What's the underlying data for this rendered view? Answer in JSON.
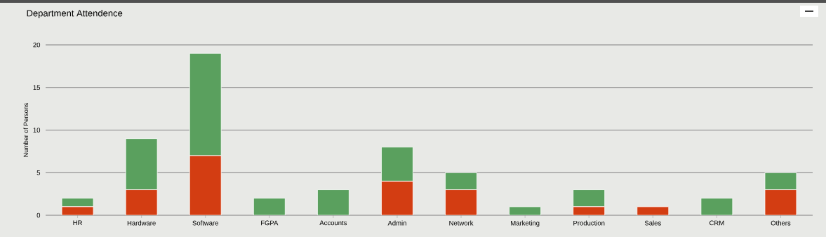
{
  "chart_data": {
    "type": "bar",
    "title": "Department Attendence",
    "ylabel": "Number of Persons",
    "categories": [
      "HR",
      "Hardware",
      "Software",
      "FGPA",
      "Accounts",
      "Admin",
      "Network",
      "Marketing",
      "Production",
      "Sales",
      "CRM",
      "Others"
    ],
    "stacked": true,
    "series": [
      {
        "color": "#d33d12",
        "values": [
          1,
          3,
          7,
          0,
          0,
          4,
          3,
          0,
          1,
          1,
          0,
          3
        ]
      },
      {
        "color": "#5aa05e",
        "values": [
          1,
          6,
          12,
          2,
          3,
          4,
          2,
          1,
          2,
          0,
          2,
          2
        ]
      }
    ],
    "ylim": [
      0,
      20
    ],
    "yticks": [
      0,
      5,
      10,
      15,
      20
    ],
    "grid": "y"
  }
}
